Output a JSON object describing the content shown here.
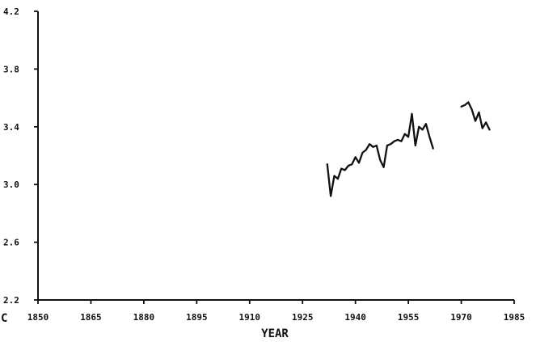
{
  "chart_data": {
    "type": "line",
    "xlabel": "YEAR",
    "ylabel": "",
    "xlim": [
      1850,
      1985
    ],
    "ylim": [
      2.2,
      4.2
    ],
    "x_ticks": [
      1850,
      1865,
      1880,
      1895,
      1910,
      1925,
      1940,
      1955,
      1970,
      1985
    ],
    "x_tick_labels": [
      "1850",
      "1865",
      "1880",
      "1895",
      "1910",
      "1925",
      "1940",
      "1955",
      "1970",
      "1985"
    ],
    "y_ticks": [
      2.2,
      2.6,
      3.0,
      3.4,
      3.8,
      4.2
    ],
    "y_tick_labels": [
      "2.2",
      "2.6",
      "3.0",
      "3.4",
      "3.8",
      "4.2"
    ],
    "corner_label": "C",
    "grid": false,
    "series": [
      {
        "segments": [
          {
            "x": [
              1932.0,
              1933.0,
              1934.0,
              1935.0,
              1936.0,
              1937.0,
              1938.0,
              1939.0,
              1940.0,
              1941.0,
              1942.0,
              1943.0,
              1944.0,
              1945.0,
              1946.0,
              1947.0,
              1948.0,
              1949.0,
              1950.0,
              1951.0,
              1952.0,
              1953.0,
              1954.0,
              1955.0,
              1956.0,
              1957.0,
              1958.0,
              1959.0,
              1960.0,
              1961.0,
              1962.0
            ],
            "y": [
              3.14,
              2.92,
              3.06,
              3.04,
              3.11,
              3.1,
              3.13,
              3.14,
              3.19,
              3.15,
              3.22,
              3.24,
              3.28,
              3.26,
              3.27,
              3.17,
              3.12,
              3.27,
              3.28,
              3.3,
              3.31,
              3.3,
              3.35,
              3.33,
              3.49,
              3.27,
              3.4,
              3.38,
              3.42,
              3.33,
              3.25
            ]
          },
          {
            "x": [
              1970.0,
              1971.0,
              1972.0,
              1973.0,
              1974.0,
              1975.0,
              1976.0,
              1977.0,
              1978.0
            ],
            "y": [
              3.54,
              3.55,
              3.57,
              3.52,
              3.44,
              3.5,
              3.39,
              3.43,
              3.38
            ]
          }
        ]
      }
    ]
  }
}
